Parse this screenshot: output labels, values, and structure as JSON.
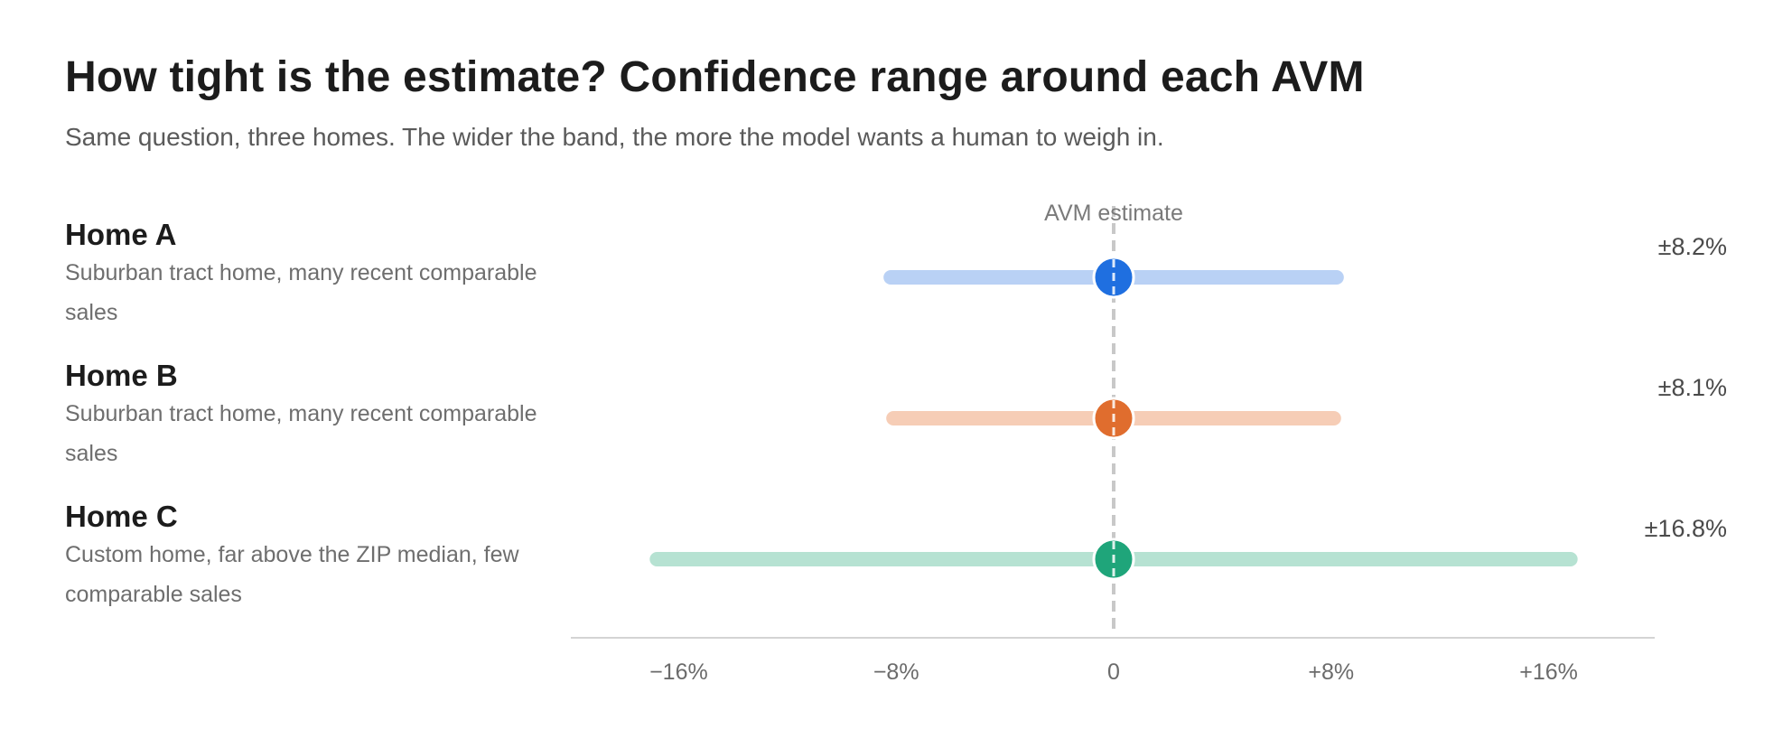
{
  "header": {
    "title": "How tight is the estimate? Confidence range around each AVM",
    "subtitle": "Same question, three homes. The wider the band, the more the model wants a human to weigh in."
  },
  "chart_data": {
    "type": "range-dot",
    "reference_label": "AVM estimate",
    "xlim": [
      -20,
      20
    ],
    "x_ticks": [
      -16,
      -8,
      0,
      8,
      16
    ],
    "x_tick_labels": [
      "−16%",
      "−8%",
      "0",
      "+8%",
      "+16%"
    ],
    "rows": [
      {
        "name": "Home A",
        "description": "Suburban tract home, many recent comparable sales",
        "low": -8.2,
        "high": 8.2,
        "estimate": 0,
        "label": "±8.2%",
        "color": "#1f6fe0",
        "band_color": "#b9d1f5"
      },
      {
        "name": "Home B",
        "description": "Suburban tract home, many recent comparable sales",
        "low": -8.1,
        "high": 8.1,
        "estimate": 0,
        "label": "±8.1%",
        "color": "#e06d2e",
        "band_color": "#f6cdb6"
      },
      {
        "name": "Home C",
        "description": "Custom home, far above the ZIP median, few comparable sales",
        "low": -16.8,
        "high": 16.8,
        "estimate": 0,
        "label": "±16.8%",
        "color": "#1fa57a",
        "band_color": "#b6e2d2"
      }
    ]
  }
}
